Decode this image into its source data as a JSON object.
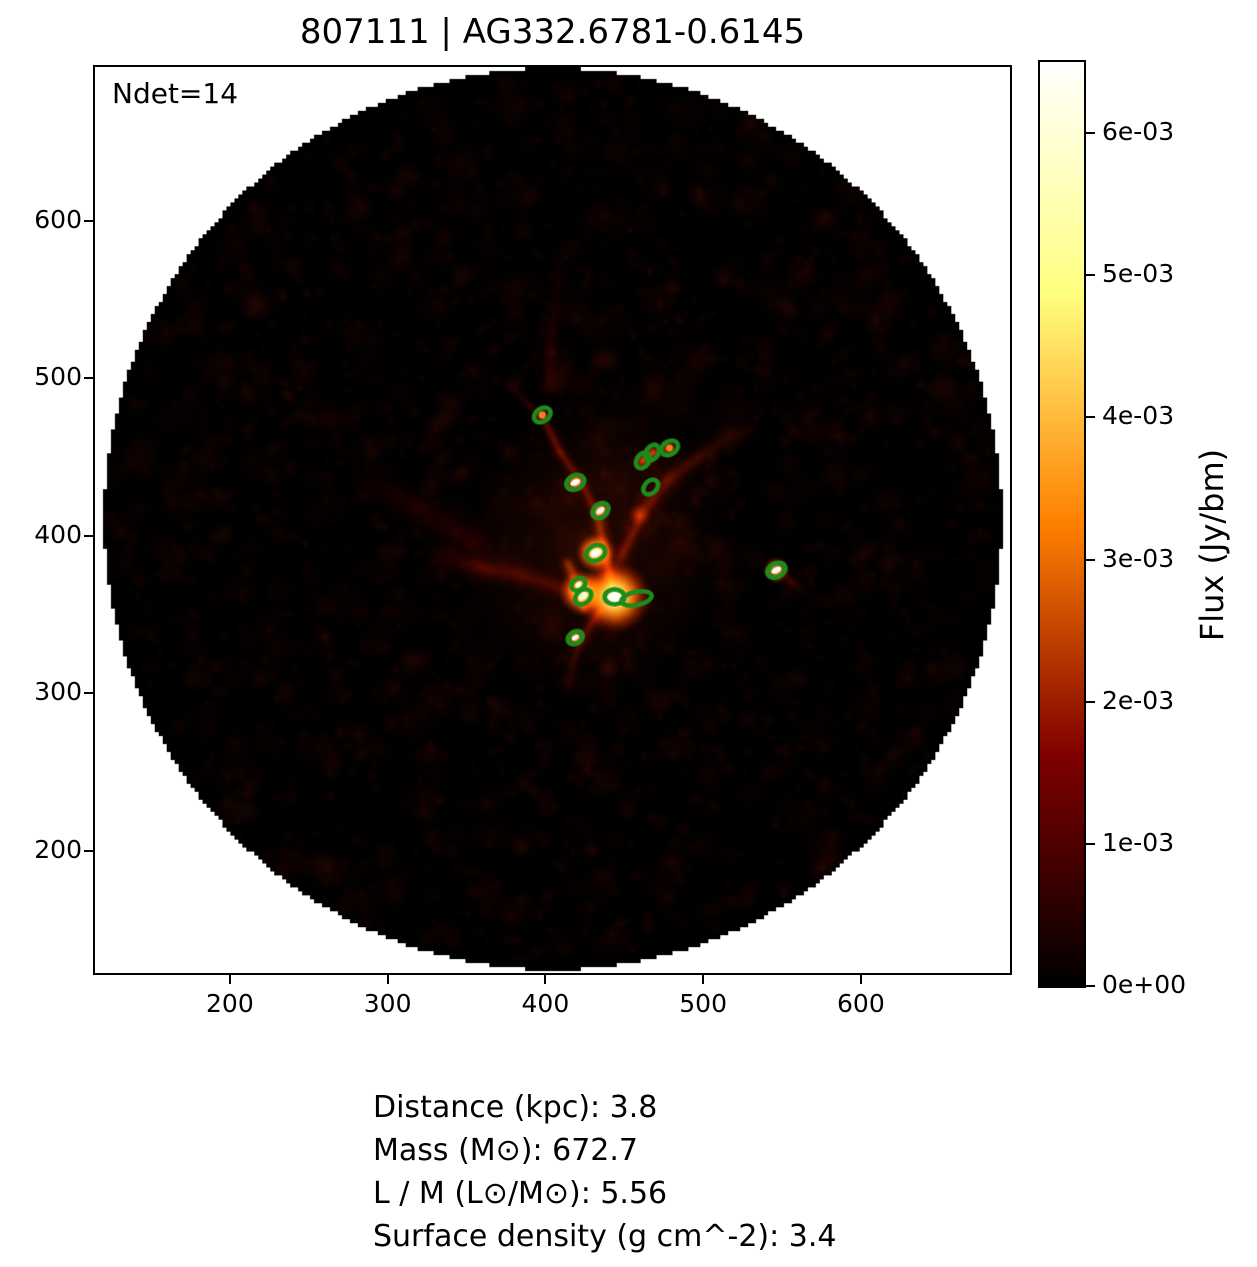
{
  "title": "807111 | AG332.6781-0.6145",
  "axes": {
    "ndet_label": "Ndet=14",
    "xticks": {
      "values": [
        200,
        300,
        400,
        500,
        600
      ],
      "labels": [
        "200",
        "300",
        "400",
        "500",
        "600"
      ]
    },
    "yticks": {
      "values": [
        200,
        300,
        400,
        500,
        600
      ],
      "labels": [
        "200",
        "300",
        "400",
        "500",
        "600"
      ]
    }
  },
  "colorbar": {
    "label": "Flux (Jy/bm)",
    "vmax": 0.0065,
    "colormap": "afmhot",
    "ticks": [
      {
        "value": 0.0,
        "label": "0e+00"
      },
      {
        "value": 0.001,
        "label": "1e-03"
      },
      {
        "value": 0.002,
        "label": "2e-03"
      },
      {
        "value": 0.003,
        "label": "3e-03"
      },
      {
        "value": 0.004,
        "label": "4e-03"
      },
      {
        "value": 0.005,
        "label": "5e-03"
      },
      {
        "value": 0.006,
        "label": "6e-03"
      }
    ]
  },
  "info": {
    "lines": [
      "Distance (kpc): 3.8",
      "Mass (M⊙): 672.7",
      "L / M (L⊙/M⊙): 5.56",
      "Surface density (g cm^-2): 3.4"
    ]
  },
  "chart_data": {
    "type": "heatmap",
    "title": "807111 | AG332.6781-0.6145",
    "source_id": "807111",
    "source_name": "AG332.6781-0.6145",
    "n_detections": 14,
    "xlim": [
      113,
      696
    ],
    "ylim": [
      120,
      700
    ],
    "xticks": [
      200,
      300,
      400,
      500,
      600
    ],
    "yticks": [
      200,
      300,
      400,
      500,
      600
    ],
    "flux_label": "Flux (Jy/bm)",
    "flux_min": 0,
    "flux_max": 0.0065,
    "colorbar_tick_values": [
      0,
      0.001,
      0.002,
      0.003,
      0.004,
      0.005,
      0.006
    ],
    "colormap": "afmhot",
    "field_center": [
      404.5,
      410
    ],
    "field_radius": 288,
    "properties": {
      "distance_kpc": 3.8,
      "mass_msun": 672.7,
      "l_over_m_lsun_msun": 5.56,
      "surface_density_g_cm2": 3.4
    },
    "detections": [
      {
        "x": 398,
        "y": 477,
        "rx": 5.7,
        "ry": 4.2,
        "angle": -35,
        "center": "orange"
      },
      {
        "x": 462,
        "y": 448,
        "rx": 5.4,
        "ry": 3.9,
        "angle": -55,
        "center": "none"
      },
      {
        "x": 468,
        "y": 453,
        "rx": 5.4,
        "ry": 3.9,
        "angle": -55,
        "center": "none"
      },
      {
        "x": 479,
        "y": 456,
        "rx": 5.7,
        "ry": 4.2,
        "angle": -30,
        "center": "orange"
      },
      {
        "x": 419,
        "y": 434,
        "rx": 6.0,
        "ry": 4.4,
        "angle": -25,
        "center": "white"
      },
      {
        "x": 467,
        "y": 431,
        "rx": 5.4,
        "ry": 3.9,
        "angle": -45,
        "center": "none"
      },
      {
        "x": 435,
        "y": 416,
        "rx": 5.7,
        "ry": 4.2,
        "angle": -40,
        "center": "white"
      },
      {
        "x": 432,
        "y": 389,
        "rx": 6.3,
        "ry": 4.8,
        "angle": -25,
        "center": "white"
      },
      {
        "x": 547,
        "y": 378,
        "rx": 6.0,
        "ry": 4.4,
        "angle": -25,
        "center": "white"
      },
      {
        "x": 421,
        "y": 369,
        "rx": 4.8,
        "ry": 3.6,
        "angle": -35,
        "center": "white"
      },
      {
        "x": 424,
        "y": 361,
        "rx": 5.7,
        "ry": 4.2,
        "angle": -40,
        "center": "white"
      },
      {
        "x": 444,
        "y": 361,
        "rx": 6.3,
        "ry": 4.8,
        "angle": 0,
        "center": "white"
      },
      {
        "x": 458,
        "y": 360,
        "rx": 9.8,
        "ry": 4.2,
        "angle": -12,
        "center": "none"
      },
      {
        "x": 419,
        "y": 335,
        "rx": 5.1,
        "ry": 3.8,
        "angle": -30,
        "center": "white"
      }
    ],
    "morphology": {
      "filaments": [
        {
          "pts": [
            [
              460,
              413
            ],
            [
              478,
              436
            ],
            [
              498,
              450
            ],
            [
              516,
              462
            ],
            [
              532,
              468
            ]
          ],
          "w": 10.5,
          "s": 0.5,
          "fade": true
        },
        {
          "pts": [
            [
              442,
              368
            ],
            [
              438,
              390
            ],
            [
              433,
              413
            ]
          ],
          "w": 8.0,
          "s": 0.7,
          "fade": false
        },
        {
          "pts": [
            [
              433,
              413
            ],
            [
              425,
              430
            ],
            [
              409,
              454
            ],
            [
              400,
              472
            ]
          ],
          "w": 6.3,
          "s": 0.45,
          "fade": false
        },
        {
          "pts": [
            [
              400,
              473
            ],
            [
              384,
              489
            ],
            [
              374,
              498
            ]
          ],
          "w": 5.7,
          "s": 0.3,
          "fade": true
        },
        {
          "pts": [
            [
              447,
              384
            ],
            [
              460,
              410
            ]
          ],
          "w": 8.0,
          "s": 0.5,
          "fade": false
        },
        {
          "pts": [
            [
              460,
              446
            ],
            [
              469,
              453
            ],
            [
              480,
              455
            ]
          ],
          "w": 7.6,
          "s": 0.55,
          "fade": false
        },
        {
          "pts": [
            [
              435,
              352
            ],
            [
              422,
              333
            ],
            [
              417,
              317
            ],
            [
              414,
              302
            ]
          ],
          "w": 7.0,
          "s": 0.45,
          "fade": true
        },
        {
          "pts": [
            [
              431,
              359
            ],
            [
              406,
              368
            ],
            [
              381,
              376
            ],
            [
              358,
              379
            ]
          ],
          "w": 11.4,
          "s": 0.28,
          "fade": false
        },
        {
          "pts": [
            [
              358,
              379
            ],
            [
              327,
              390
            ]
          ],
          "w": 14.0,
          "s": 0.16,
          "fade": true
        },
        {
          "pts": [
            [
              358,
              394
            ],
            [
              320,
              416
            ],
            [
              276,
              441
            ]
          ],
          "w": 19.0,
          "s": 0.11,
          "fade": true
        },
        {
          "pts": [
            [
              402,
              492
            ],
            [
              404,
              530
            ],
            [
              409,
              575
            ]
          ],
          "w": 9.0,
          "s": 0.11,
          "fade": true
        },
        {
          "pts": [
            [
              554,
              373
            ],
            [
              564,
              364
            ]
          ],
          "w": 5.7,
          "s": 0.3,
          "fade": true
        },
        {
          "pts": [
            [
              414,
              383
            ],
            [
              421,
              366
            ],
            [
              425,
              351
            ]
          ],
          "w": 7.6,
          "s": 0.75,
          "fade": false
        }
      ],
      "glows": [
        {
          "x": 447,
          "y": 435,
          "r": 76,
          "type": "diffuse-faint"
        },
        {
          "x": 428,
          "y": 384,
          "r": 88,
          "type": "diffuse"
        },
        {
          "x": 462,
          "y": 448,
          "r": 6,
          "type": "knot-faint"
        },
        {
          "x": 468,
          "y": 453,
          "r": 6,
          "type": "knot-faint"
        },
        {
          "x": 460,
          "y": 413,
          "r": 8,
          "type": "knot-faint"
        },
        {
          "x": 398,
          "y": 477,
          "r": 5,
          "type": "knot-orange"
        },
        {
          "x": 479,
          "y": 456,
          "r": 5,
          "type": "knot-orange"
        },
        {
          "x": 419,
          "y": 434,
          "r": 7,
          "type": "knot-white"
        },
        {
          "x": 435,
          "y": 416,
          "r": 7,
          "type": "knot-white"
        },
        {
          "x": 547,
          "y": 378,
          "r": 9,
          "type": "knot-white"
        },
        {
          "x": 419,
          "y": 335,
          "r": 6,
          "type": "knot-white"
        },
        {
          "x": 432,
          "y": 389,
          "r": 13,
          "type": "peak"
        },
        {
          "x": 423,
          "y": 364,
          "r": 15,
          "type": "peak"
        },
        {
          "x": 444,
          "y": 361,
          "r": 24,
          "type": "core"
        }
      ]
    }
  },
  "style": {
    "marker_green": "#1c8c1c",
    "background": "#ffffff",
    "text_color": "#000000"
  }
}
